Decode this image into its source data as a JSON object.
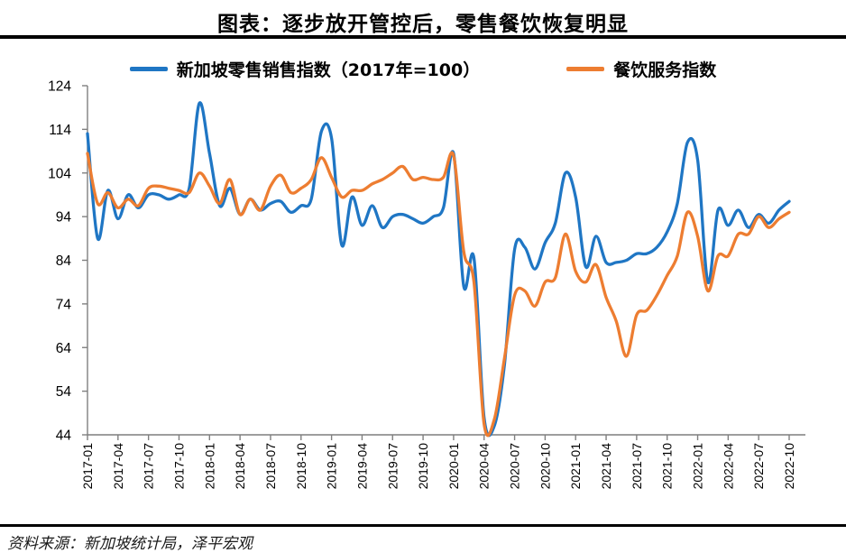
{
  "page": {
    "title": "图表：逐步放开管控后，零售餐饮恢复明显",
    "source": "资料来源：新加坡统计局，泽平宏观"
  },
  "colors": {
    "series_retail": "#1F76C4",
    "series_fnb": "#ED7D31",
    "axis": "#7F7F7F",
    "text": "#000000",
    "rule": "#000000"
  },
  "chart_data": {
    "type": "line",
    "title": "图表：逐步放开管控后，零售餐饮恢复明显",
    "xlabel": "",
    "ylabel": "",
    "ylim": [
      44,
      124
    ],
    "y_ticks": [
      44,
      54,
      64,
      74,
      84,
      94,
      104,
      114,
      124
    ],
    "grid": false,
    "legend_position": "top",
    "x": [
      "2017-01",
      "2017-02",
      "2017-03",
      "2017-04",
      "2017-05",
      "2017-06",
      "2017-07",
      "2017-08",
      "2017-09",
      "2017-10",
      "2017-11",
      "2017-12",
      "2018-01",
      "2018-02",
      "2018-03",
      "2018-04",
      "2018-05",
      "2018-06",
      "2018-07",
      "2018-08",
      "2018-09",
      "2018-10",
      "2018-11",
      "2018-12",
      "2019-01",
      "2019-02",
      "2019-03",
      "2019-04",
      "2019-05",
      "2019-06",
      "2019-07",
      "2019-08",
      "2019-09",
      "2019-10",
      "2019-11",
      "2019-12",
      "2020-01",
      "2020-02",
      "2020-03",
      "2020-04",
      "2020-05",
      "2020-06",
      "2020-07",
      "2020-08",
      "2020-09",
      "2020-10",
      "2020-11",
      "2020-12",
      "2021-01",
      "2021-02",
      "2021-03",
      "2021-04",
      "2021-05",
      "2021-06",
      "2021-07",
      "2021-08",
      "2021-09",
      "2021-10",
      "2021-11",
      "2021-12",
      "2022-01",
      "2022-02",
      "2022-03",
      "2022-04",
      "2022-05",
      "2022-06",
      "2022-07",
      "2022-08",
      "2022-09",
      "2022-10"
    ],
    "x_tick_labels": [
      "2017-01",
      "2017-04",
      "2017-07",
      "2017-10",
      "2018-01",
      "2018-04",
      "2018-07",
      "2018-10",
      "2019-01",
      "2019-04",
      "2019-07",
      "2019-10",
      "2020-01",
      "2020-04",
      "2020-07",
      "2020-10",
      "2021-01",
      "2021-04",
      "2021-07",
      "2021-10",
      "2022-01",
      "2022-04",
      "2022-07",
      "2022-10"
    ],
    "series": [
      {
        "name": "新加坡零售销售指数（2017年=100）",
        "color": "#1F76C4",
        "values": [
          113,
          89,
          100,
          93.5,
          99,
          96,
          99,
          99,
          98,
          99,
          100.5,
          120,
          108.5,
          96.5,
          100.5,
          94.5,
          98,
          95.5,
          97,
          97.5,
          95,
          96.5,
          98,
          113.5,
          112,
          87.5,
          98.5,
          92,
          96.5,
          91.5,
          94,
          94.5,
          93.5,
          92.5,
          94,
          96,
          108.5,
          78,
          84.5,
          48,
          46,
          60,
          86.5,
          87,
          82,
          88,
          92.5,
          104,
          98.5,
          82.5,
          89.5,
          83.5,
          83.5,
          84,
          85.5,
          85.5,
          87,
          90.5,
          97,
          111,
          107,
          79,
          95.5,
          92,
          95.5,
          91.5,
          94.5,
          92.5,
          95.5,
          97.5
        ]
      },
      {
        "name": "餐饮服务指数",
        "color": "#ED7D31",
        "values": [
          108.5,
          97,
          99.5,
          96,
          98,
          96.5,
          100.5,
          101,
          100.5,
          100,
          99.5,
          104,
          101,
          97,
          102.5,
          94.5,
          98,
          95.5,
          101,
          103.5,
          99.5,
          100.5,
          102.5,
          107.5,
          103,
          98.5,
          100,
          100,
          101.5,
          102.5,
          104,
          105.5,
          102.5,
          103,
          102.5,
          103,
          108,
          86,
          79,
          46.5,
          47.5,
          61.5,
          76,
          77,
          73.5,
          79,
          80,
          90,
          81.5,
          79,
          83,
          75.5,
          70,
          62,
          71.5,
          72.5,
          76,
          80.5,
          85,
          95,
          89.5,
          77,
          85,
          85,
          90,
          90,
          94,
          91.5,
          93.5,
          95
        ]
      }
    ]
  }
}
